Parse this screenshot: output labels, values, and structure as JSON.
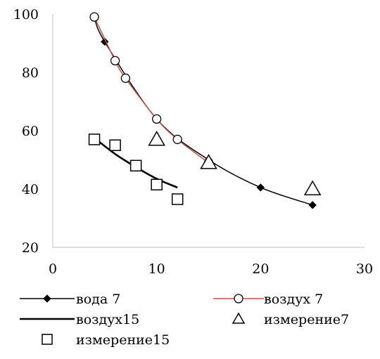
{
  "chart_data": {
    "type": "scatter",
    "title": "",
    "xlabel": "",
    "ylabel": "",
    "xlim": [
      0,
      30
    ],
    "ylim": [
      20,
      100
    ],
    "x_ticks": [
      0,
      10,
      20,
      30
    ],
    "y_ticks": [
      20,
      40,
      60,
      80,
      100
    ],
    "x_tick_labels": [
      "0",
      "10",
      "20",
      "30"
    ],
    "y_tick_labels": [
      "20",
      "40",
      "60",
      "80",
      "100"
    ],
    "grid": false,
    "legend_position": "bottom",
    "series": [
      {
        "name": "вода 7",
        "kind": "line-markers",
        "marker": "diamond-filled",
        "color": "#000000",
        "x": [
          4,
          5,
          10,
          15,
          20,
          25
        ],
        "y": [
          99,
          90.5,
          64,
          50,
          40.5,
          34.5
        ]
      },
      {
        "name": "воздух 7",
        "kind": "line-markers",
        "marker": "circle-open",
        "color": "#c0504d",
        "x": [
          4,
          6,
          7,
          10,
          12,
          15
        ],
        "y": [
          99,
          84,
          78,
          64,
          57,
          49
        ]
      },
      {
        "name": "воздух15",
        "kind": "line",
        "marker": "none",
        "color": "#000000",
        "x": [
          4,
          6,
          8,
          10,
          12
        ],
        "y": [
          57.5,
          52,
          47.5,
          43.5,
          40.5
        ]
      },
      {
        "name": "измерение7",
        "kind": "markers",
        "marker": "triangle-open",
        "color": "#000000",
        "x": [
          10,
          15,
          25
        ],
        "y": [
          57,
          49,
          40
        ]
      },
      {
        "name": "измерение15",
        "kind": "markers",
        "marker": "square-open",
        "color": "#000000",
        "x": [
          4,
          6,
          8,
          10,
          12
        ],
        "y": [
          57,
          55,
          48,
          41.5,
          36.5
        ]
      }
    ]
  }
}
